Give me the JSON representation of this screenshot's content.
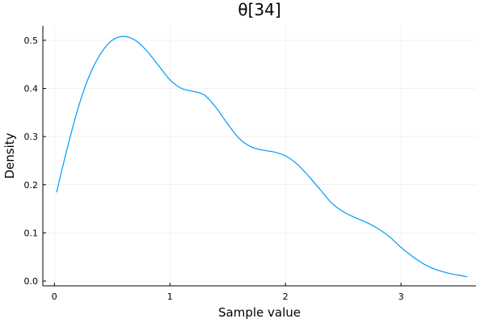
{
  "chart_data": {
    "type": "line",
    "title": "θ[34]",
    "xlabel": "Sample value",
    "ylabel": "Density",
    "xlim": [
      -0.1,
      3.65
    ],
    "ylim": [
      -0.01,
      0.53
    ],
    "xticks": [
      0,
      1,
      2,
      3
    ],
    "xtick_labels": [
      "0",
      "1",
      "2",
      "3"
    ],
    "yticks": [
      0.0,
      0.1,
      0.2,
      0.3,
      0.4,
      0.5
    ],
    "ytick_labels": [
      "0.0",
      "0.1",
      "0.2",
      "0.3",
      "0.4",
      "0.5"
    ],
    "grid": true,
    "legend": "none",
    "series": [
      {
        "color": "#009AFA",
        "x": [
          0.02,
          0.1,
          0.2,
          0.3,
          0.4,
          0.5,
          0.6,
          0.7,
          0.8,
          0.9,
          1.0,
          1.1,
          1.2,
          1.3,
          1.4,
          1.5,
          1.6,
          1.7,
          1.8,
          1.9,
          2.0,
          2.1,
          2.2,
          2.3,
          2.4,
          2.5,
          2.6,
          2.7,
          2.8,
          2.9,
          3.0,
          3.1,
          3.2,
          3.3,
          3.4,
          3.5,
          3.57
        ],
        "y": [
          0.185,
          0.265,
          0.355,
          0.425,
          0.472,
          0.5,
          0.508,
          0.5,
          0.478,
          0.448,
          0.418,
          0.4,
          0.394,
          0.386,
          0.36,
          0.326,
          0.296,
          0.279,
          0.272,
          0.268,
          0.26,
          0.243,
          0.218,
          0.19,
          0.162,
          0.144,
          0.132,
          0.122,
          0.109,
          0.092,
          0.07,
          0.051,
          0.035,
          0.024,
          0.017,
          0.012,
          0.009
        ]
      }
    ]
  }
}
